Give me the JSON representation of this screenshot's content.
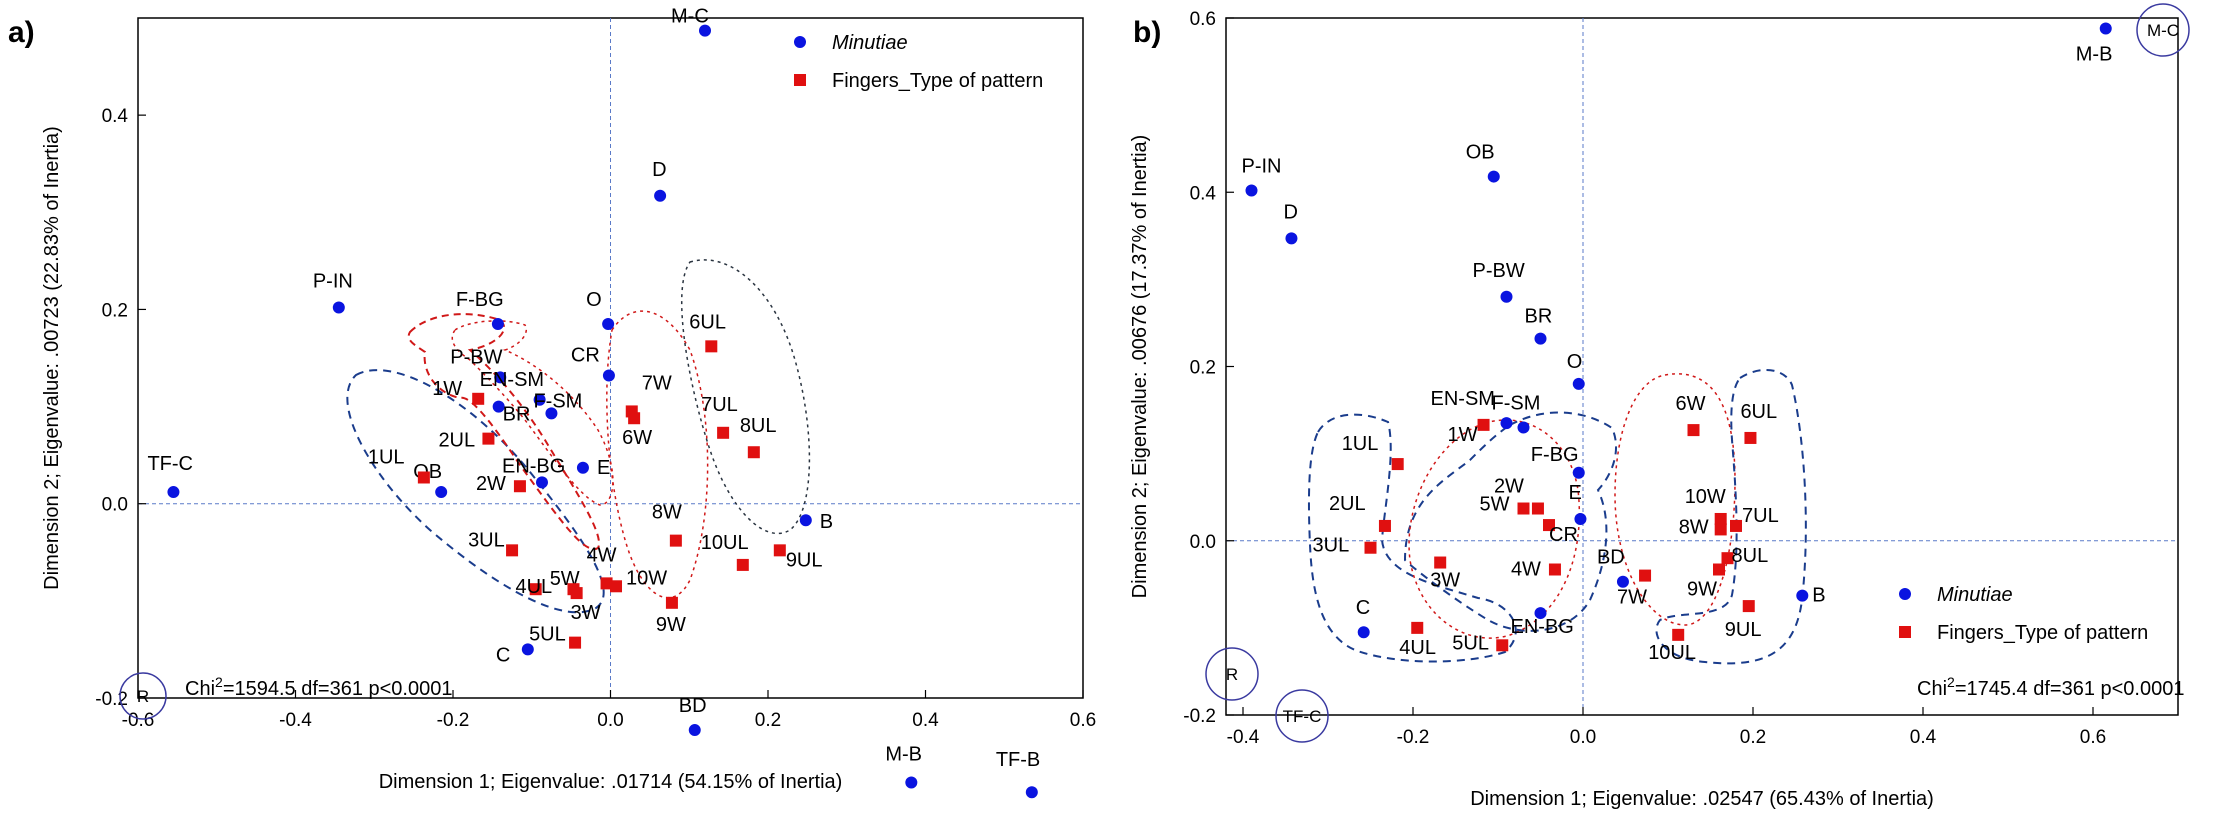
{
  "colors": {
    "minutiae": "#0a14e0",
    "fingers": "#e01010",
    "ellipse_blue": "#1a3c8c",
    "ellipse_red": "#d01818",
    "ellipse_grey": "#2a3440",
    "axis_ref": "#5a7ac8"
  },
  "chart_data": [
    {
      "type": "scatter",
      "panel_label": "a)",
      "xlabel": "Dimension 1; Eigenvalue: .01714 (54.15% of Inertia)",
      "ylabel": "Dimension 2; Eigenvalue: .00723 (22.83% of Inertia)",
      "xlim": [
        -0.6,
        0.6
      ],
      "ylim": [
        -0.2,
        0.5
      ],
      "xticks": [
        -0.6,
        -0.4,
        -0.2,
        0.0,
        0.2,
        0.4,
        0.6
      ],
      "yticks": [
        -0.2,
        0.0,
        0.2,
        0.4
      ],
      "xtick_labels": [
        "-0.6",
        "-0.4",
        "-0.2",
        "0.0",
        "0.2",
        "0.4",
        "0.6"
      ],
      "ytick_labels": [
        "-0.2",
        "0.0",
        "0.2",
        "0.4"
      ],
      "legend": {
        "placement": "top-right",
        "entries": [
          {
            "label": "Minutiae",
            "italic": true,
            "marker": "circle"
          },
          {
            "label": "Fingers_Type of pattern",
            "italic": false,
            "marker": "square"
          }
        ]
      },
      "annotation": "Chi²=1594.5 df=361 p<0.0001",
      "corner_labels": [
        "R"
      ],
      "series": [
        {
          "name": "Minutiae",
          "marker": "circle",
          "points": [
            {
              "label": "M-C",
              "x": 0.12,
              "y": 0.487
            },
            {
              "label": "D",
              "x": 0.063,
              "y": 0.317
            },
            {
              "label": "P-IN",
              "x": -0.345,
              "y": 0.202
            },
            {
              "label": "F-BG",
              "x": -0.143,
              "y": 0.185
            },
            {
              "label": "O",
              "x": -0.003,
              "y": 0.185
            },
            {
              "label": "CR",
              "x": -0.002,
              "y": 0.132
            },
            {
              "label": "P-BW",
              "x": -0.14,
              "y": 0.13
            },
            {
              "label": "EN-SM",
              "x": -0.09,
              "y": 0.107
            },
            {
              "label": "BR",
              "x": -0.142,
              "y": 0.1
            },
            {
              "label": "F-SM",
              "x": -0.075,
              "y": 0.093
            },
            {
              "label": "E",
              "x": -0.035,
              "y": 0.037
            },
            {
              "label": "EN-BG",
              "x": -0.087,
              "y": 0.022
            },
            {
              "label": "OB",
              "x": -0.215,
              "y": 0.012
            },
            {
              "label": "TF-C",
              "x": -0.555,
              "y": 0.012
            },
            {
              "label": "B",
              "x": 0.248,
              "y": -0.017
            },
            {
              "label": "C",
              "x": -0.105,
              "y": -0.15
            },
            {
              "label": "BD",
              "x": 0.107,
              "y": -0.233
            },
            {
              "label": "M-B",
              "x": 0.382,
              "y": -0.287
            },
            {
              "label": "TF-B",
              "x": 0.535,
              "y": -0.297
            }
          ]
        },
        {
          "name": "Fingers_Type of pattern",
          "marker": "square",
          "points": [
            {
              "label": "6UL",
              "x": 0.128,
              "y": 0.162
            },
            {
              "label": "1W",
              "x": -0.168,
              "y": 0.108
            },
            {
              "label": "7W",
              "x": 0.027,
              "y": 0.095
            },
            {
              "label": "6W",
              "x": 0.03,
              "y": 0.088
            },
            {
              "label": "2UL",
              "x": -0.155,
              "y": 0.067
            },
            {
              "label": "7UL",
              "x": 0.143,
              "y": 0.073
            },
            {
              "label": "8UL",
              "x": 0.182,
              "y": 0.053
            },
            {
              "label": "1UL",
              "x": -0.237,
              "y": 0.027
            },
            {
              "label": "2W",
              "x": -0.115,
              "y": 0.018
            },
            {
              "label": "8W",
              "x": 0.083,
              "y": -0.038
            },
            {
              "label": "10UL",
              "x": 0.168,
              "y": -0.063
            },
            {
              "label": "9UL",
              "x": 0.215,
              "y": -0.048
            },
            {
              "label": "3UL",
              "x": -0.125,
              "y": -0.048
            },
            {
              "label": "4W",
              "x": -0.005,
              "y": -0.082
            },
            {
              "label": "10W",
              "x": 0.007,
              "y": -0.085
            },
            {
              "label": "5W",
              "x": -0.095,
              "y": -0.088
            },
            {
              "label": "4UL",
              "x": -0.047,
              "y": -0.088
            },
            {
              "label": "3W",
              "x": -0.043,
              "y": -0.092
            },
            {
              "label": "9W",
              "x": 0.078,
              "y": -0.102
            },
            {
              "label": "5UL",
              "x": -0.045,
              "y": -0.143
            }
          ]
        }
      ]
    },
    {
      "type": "scatter",
      "panel_label": "b)",
      "xlabel": "Dimension 1; Eigenvalue: .02547 (65.43% of Inertia)",
      "ylabel": "Dimension 2; Eigenvalue: .00676 (17.37% of Inertia)",
      "xlim": [
        -0.42,
        0.7
      ],
      "ylim": [
        -0.2,
        0.6
      ],
      "xticks": [
        -0.4,
        -0.2,
        0.0,
        0.2,
        0.4,
        0.6
      ],
      "yticks": [
        -0.2,
        0.0,
        0.2,
        0.4,
        0.6
      ],
      "xtick_labels": [
        "-0.4",
        "-0.2",
        "0.0",
        "0.2",
        "0.4",
        "0.6"
      ],
      "ytick_labels": [
        "-0.2",
        "0.0",
        "0.2",
        "0.4",
        "0.6"
      ],
      "legend": {
        "placement": "bottom-right",
        "entries": [
          {
            "label": "Minutiae",
            "italic": true,
            "marker": "circle"
          },
          {
            "label": "Fingers_Type of pattern",
            "italic": false,
            "marker": "square"
          }
        ]
      },
      "annotation": "Chi²=1745.4 df=361 p<0.0001",
      "corner_labels": [
        "M-C",
        "R",
        "TF-C"
      ],
      "series": [
        {
          "name": "Minutiae",
          "marker": "circle",
          "points": [
            {
              "label": "M-B",
              "x": 0.615,
              "y": 0.588
            },
            {
              "label": "P-IN",
              "x": -0.39,
              "y": 0.402
            },
            {
              "label": "OB",
              "x": -0.105,
              "y": 0.418
            },
            {
              "label": "D",
              "x": -0.343,
              "y": 0.347
            },
            {
              "label": "P-BW",
              "x": -0.09,
              "y": 0.28
            },
            {
              "label": "BR",
              "x": -0.05,
              "y": 0.232
            },
            {
              "label": "O",
              "x": -0.005,
              "y": 0.18
            },
            {
              "label": "EN-SM",
              "x": -0.09,
              "y": 0.135
            },
            {
              "label": "F-SM",
              "x": -0.07,
              "y": 0.13
            },
            {
              "label": "F-BG",
              "x": -0.005,
              "y": 0.078
            },
            {
              "label": "E",
              "x": -0.003,
              "y": 0.025
            },
            {
              "label": "BD",
              "x": 0.047,
              "y": -0.047
            },
            {
              "label": "B",
              "x": 0.258,
              "y": -0.063
            },
            {
              "label": "EN-BG",
              "x": -0.05,
              "y": -0.083
            },
            {
              "label": "C",
              "x": -0.258,
              "y": -0.105
            }
          ]
        },
        {
          "name": "Fingers_Type of pattern",
          "marker": "square",
          "points": [
            {
              "label": "1W",
              "x": -0.117,
              "y": 0.133
            },
            {
              "label": "6W",
              "x": 0.13,
              "y": 0.127
            },
            {
              "label": "6UL",
              "x": 0.197,
              "y": 0.118
            },
            {
              "label": "1UL",
              "x": -0.218,
              "y": 0.088
            },
            {
              "label": "2W",
              "x": -0.053,
              "y": 0.037
            },
            {
              "label": "5W",
              "x": -0.07,
              "y": 0.037
            },
            {
              "label": "CR",
              "x": -0.04,
              "y": 0.018
            },
            {
              "label": "10W",
              "x": 0.162,
              "y": 0.025
            },
            {
              "label": "7UL",
              "x": 0.18,
              "y": 0.017
            },
            {
              "label": "2UL",
              "x": -0.233,
              "y": 0.017
            },
            {
              "label": "8W",
              "x": 0.162,
              "y": 0.013
            },
            {
              "label": "3UL",
              "x": -0.25,
              "y": -0.008
            },
            {
              "label": "8UL",
              "x": 0.17,
              "y": -0.02
            },
            {
              "label": "3W",
              "x": -0.168,
              "y": -0.025
            },
            {
              "label": "4W",
              "x": -0.033,
              "y": -0.033
            },
            {
              "label": "9W",
              "x": 0.16,
              "y": -0.033
            },
            {
              "label": "7W",
              "x": 0.073,
              "y": -0.04
            },
            {
              "label": "9UL",
              "x": 0.195,
              "y": -0.075
            },
            {
              "label": "4UL",
              "x": -0.195,
              "y": -0.1
            },
            {
              "label": "10UL",
              "x": 0.112,
              "y": -0.108
            },
            {
              "label": "5UL",
              "x": -0.095,
              "y": -0.12
            }
          ]
        }
      ]
    }
  ]
}
